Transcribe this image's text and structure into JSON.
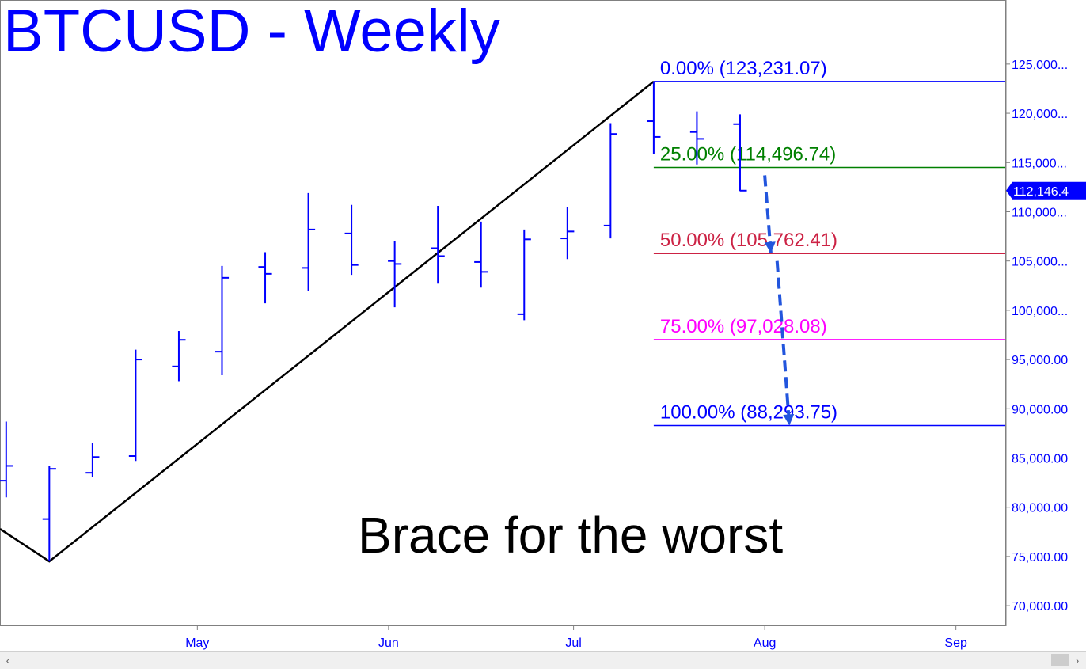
{
  "title": "BTCUSD - Weekly",
  "annotation": "Brace for the worst",
  "colors": {
    "bars": "#0000ff",
    "trendline": "#000000",
    "fib_0": "#0000ff",
    "fib_25": "#008000",
    "fib_50": "#cc2244",
    "fib_75": "#ff00ff",
    "fib_100": "#0000ff",
    "projection": "#2255dd",
    "price_badge": "#0000ff"
  },
  "chart_data": {
    "type": "ohlc",
    "title": "BTCUSD - Weekly",
    "y_axis": {
      "ticks": [
        "125,000...",
        "120,000...",
        "115,000...",
        "110,000...",
        "105,000...",
        "100,000...",
        "95,000.00",
        "90,000.00",
        "85,000.00",
        "80,000.00",
        "75,000.00",
        "70,000.00"
      ],
      "tick_values": [
        125000,
        120000,
        115000,
        110000,
        105000,
        100000,
        95000,
        90000,
        85000,
        80000,
        75000,
        70000
      ],
      "range": [
        68000,
        131500
      ],
      "position": "right"
    },
    "x_axis": {
      "ticks": [
        "May",
        "Jun",
        "Jul",
        "Aug",
        "Sep"
      ],
      "tick_dates": [
        "2025-05-01",
        "2025-06-01",
        "2025-07-01",
        "2025-08-01",
        "2025-09-01"
      ],
      "range": [
        "2025-03-30",
        "2025-09-09"
      ]
    },
    "bars": [
      {
        "date": "2025-03-31",
        "open": 82700,
        "high": 88700,
        "low": 81000,
        "close": 84200
      },
      {
        "date": "2025-04-07",
        "open": 78800,
        "high": 84200,
        "low": 74500,
        "close": 83900
      },
      {
        "date": "2025-04-14",
        "open": 83500,
        "high": 86500,
        "low": 83100,
        "close": 85100
      },
      {
        "date": "2025-04-21",
        "open": 85200,
        "high": 96000,
        "low": 84700,
        "close": 95000
      },
      {
        "date": "2025-04-28",
        "open": 94300,
        "high": 97900,
        "low": 92800,
        "close": 97000
      },
      {
        "date": "2025-05-05",
        "open": 95800,
        "high": 104500,
        "low": 93400,
        "close": 103300
      },
      {
        "date": "2025-05-12",
        "open": 104400,
        "high": 105900,
        "low": 100700,
        "close": 103700
      },
      {
        "date": "2025-05-19",
        "open": 104300,
        "high": 111900,
        "low": 102000,
        "close": 108200
      },
      {
        "date": "2025-05-26",
        "open": 107800,
        "high": 110700,
        "low": 103600,
        "close": 104600
      },
      {
        "date": "2025-06-02",
        "open": 105000,
        "high": 107000,
        "low": 100300,
        "close": 104700
      },
      {
        "date": "2025-06-09",
        "open": 106300,
        "high": 110600,
        "low": 102700,
        "close": 105500
      },
      {
        "date": "2025-06-16",
        "open": 104900,
        "high": 109000,
        "low": 102300,
        "close": 103900
      },
      {
        "date": "2025-06-23",
        "open": 99600,
        "high": 108200,
        "low": 99000,
        "close": 107200
      },
      {
        "date": "2025-06-30",
        "open": 107300,
        "high": 110500,
        "low": 105200,
        "close": 108000
      },
      {
        "date": "2025-07-07",
        "open": 108600,
        "high": 119000,
        "low": 107300,
        "close": 117900
      },
      {
        "date": "2025-07-14",
        "open": 119200,
        "high": 123200,
        "low": 115900,
        "close": 117600
      },
      {
        "date": "2025-07-21",
        "open": 118100,
        "high": 120200,
        "low": 114800,
        "close": 117400
      },
      {
        "date": "2025-07-28",
        "open": 118900,
        "high": 119900,
        "low": 112100,
        "close": 112146.4
      }
    ],
    "trendline": [
      {
        "date": "2025-03-30",
        "value": 77800
      },
      {
        "date": "2025-04-07",
        "value": 74500
      },
      {
        "date": "2025-07-14",
        "value": 123231.07
      }
    ],
    "fib_levels": [
      {
        "label": "0.00% (123,231.07)",
        "pct": 0,
        "value": 123231.07,
        "color": "#0000ff",
        "from_date": "2025-07-14"
      },
      {
        "label": "25.00% (114,496.74)",
        "pct": 25,
        "value": 114496.74,
        "color": "#008000",
        "from_date": "2025-07-14"
      },
      {
        "label": "50.00% (105,762.41)",
        "pct": 50,
        "value": 105762.41,
        "color": "#cc2244",
        "from_date": "2025-07-14"
      },
      {
        "label": "75.00% (97,028.08)",
        "pct": 75,
        "value": 97028.08,
        "color": "#ff00ff",
        "from_date": "2025-07-14"
      },
      {
        "label": "100.00% (88,293.75)",
        "pct": 100,
        "value": 88293.75,
        "color": "#0000ff",
        "from_date": "2025-07-14"
      }
    ],
    "projection_arrows": [
      {
        "from": {
          "date": "2025-08-01",
          "value": 113700
        },
        "to": {
          "date": "2025-08-02",
          "value": 105800
        }
      },
      {
        "from": {
          "date": "2025-08-03",
          "value": 105000
        },
        "to": {
          "date": "2025-08-05",
          "value": 88300
        }
      }
    ],
    "last_price": {
      "value": 112146.4,
      "label": "112,146.4"
    },
    "grid": false,
    "legend": "none"
  }
}
